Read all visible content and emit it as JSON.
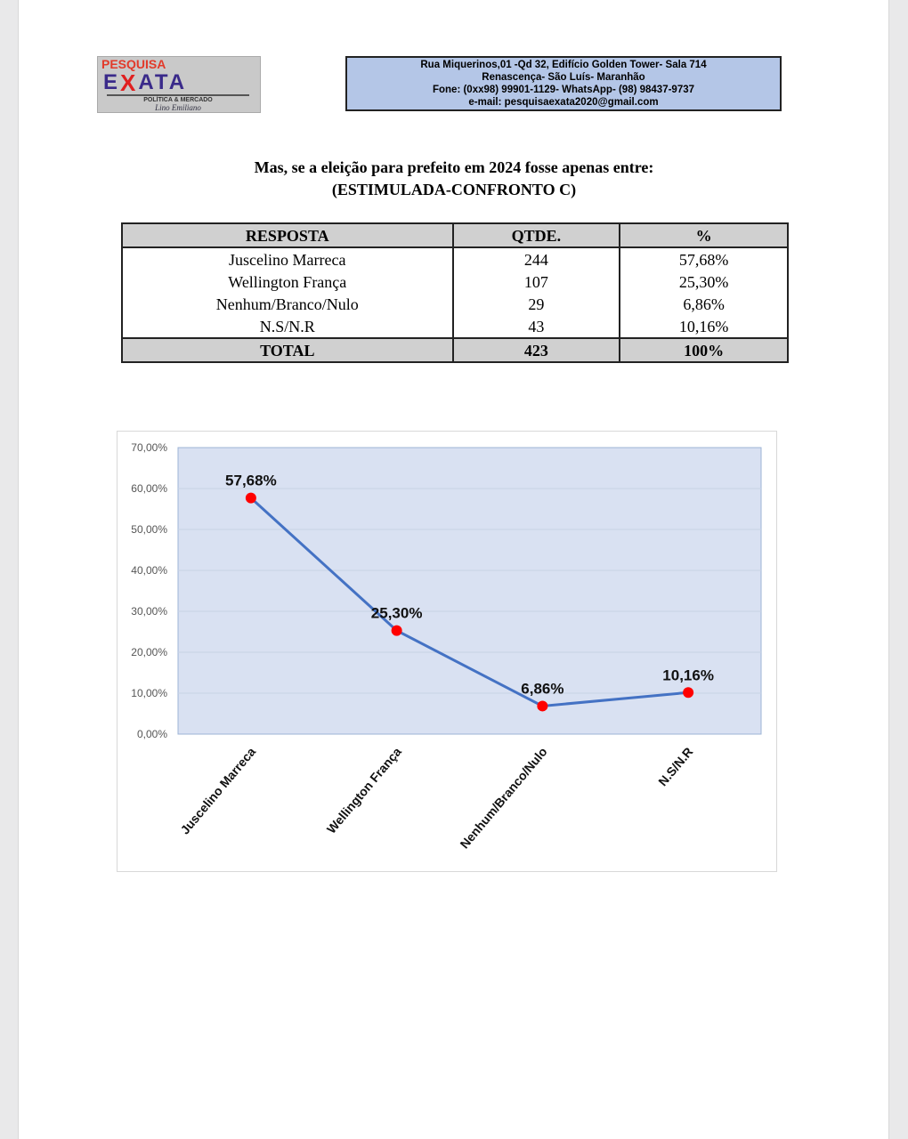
{
  "header": {
    "logo": {
      "top": "PESQUISA",
      "main_left": "E",
      "main_x": "X",
      "main_right": "ATA",
      "tagline": "POLÍTICA & MERCADO",
      "signature": "Lino Emiliano"
    },
    "address_lines": [
      "Rua Miquerinos,01 -Qd 32,  Edifício Golden Tower- Sala 714",
      "Renascença- São Luís- Maranhão",
      "Fone: (0xx98) 99901-1129- WhatsApp- (98) 98437-9737",
      "e-mail: pesquisaexata2020@gmail.com"
    ]
  },
  "title": {
    "line1": "Mas, se a eleição para prefeito em 2024 fosse apenas entre:",
    "line2": "(ESTIMULADA-CONFRONTO C)"
  },
  "table": {
    "headers": [
      "RESPOSTA",
      "QTDE.",
      "%"
    ],
    "rows": [
      [
        "Juscelino Marreca",
        "244",
        "57,68%"
      ],
      [
        "Wellington França",
        "107",
        "25,30%"
      ],
      [
        "Nenhum/Branco/Nulo",
        "29",
        "6,86%"
      ],
      [
        "N.S/N.R",
        "43",
        "10,16%"
      ]
    ],
    "total": [
      "TOTAL",
      "423",
      "100%"
    ]
  },
  "chart_data": {
    "type": "line",
    "categories": [
      "Juscelino Marreca",
      "Wellington França",
      "Nenhum/Branco/Nulo",
      "N.S/N.R"
    ],
    "values": [
      57.68,
      25.3,
      6.86,
      10.16
    ],
    "data_labels": [
      "57,68%",
      "25,30%",
      "6,86%",
      "10,16%"
    ],
    "ylim": [
      0,
      70
    ],
    "yticks": [
      "0,00%",
      "10,00%",
      "20,00%",
      "30,00%",
      "40,00%",
      "50,00%",
      "60,00%",
      "70,00%"
    ],
    "grid": true,
    "colors": {
      "line": "#4472c4",
      "marker": "#ff0000",
      "plot_bg": "#d9e1f2"
    }
  }
}
